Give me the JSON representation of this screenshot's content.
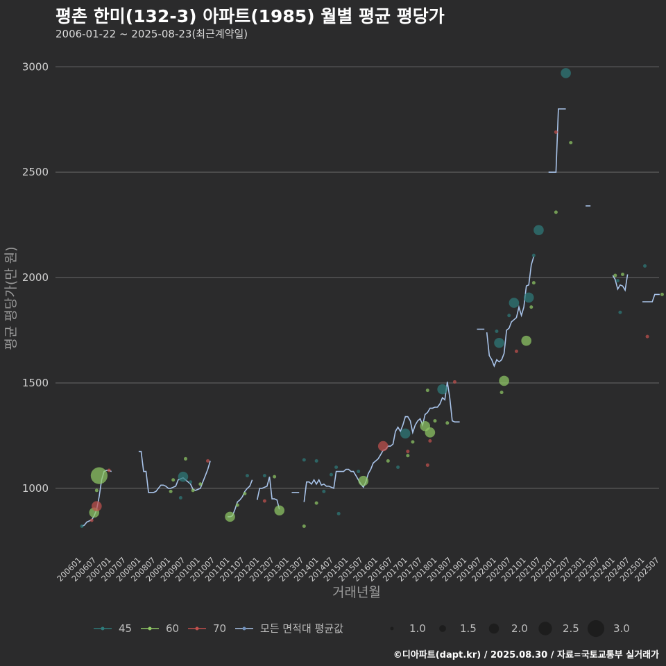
{
  "title": "평촌 한미(132-3) 아파트(1985) 월별 평균 평당가",
  "subtitle": "2006-01-22 ~ 2025-08-23(최근계약일)",
  "caption": "©디아파트(dapt.kr) / 2025.08.30 / 자료=국토교통부 실거래가",
  "colors": {
    "s45": "#2e7a7a",
    "s60": "#8fc765",
    "s70": "#c0504d",
    "avg": "#a9c4ea",
    "bg": "#2b2b2c",
    "grid": "#6a6a6a"
  },
  "chart_data": {
    "type": "scatter",
    "title": "평촌 한미(132-3) 아파트(1985) 월별 평균 평당가",
    "xlabel": "거래년월",
    "ylabel": "평균 평당가(만 원)",
    "ylim": [
      700,
      3070
    ],
    "yticks": [
      1000,
      1500,
      2000,
      2500,
      3000
    ],
    "xrange": [
      "2006-01",
      "2025-09"
    ],
    "xticks": [
      "200601",
      "200607",
      "200701",
      "200707",
      "200801",
      "200807",
      "200901",
      "200907",
      "201001",
      "201007",
      "201101",
      "201107",
      "201201",
      "201207",
      "201301",
      "201307",
      "201401",
      "201407",
      "201501",
      "201507",
      "201601",
      "201607",
      "201701",
      "201707",
      "201801",
      "201807",
      "201901",
      "201907",
      "202001",
      "202007",
      "202101",
      "202107",
      "202201",
      "202207",
      "202301",
      "202307",
      "202401",
      "202407",
      "202501",
      "202507"
    ],
    "legend_color": [
      {
        "key": "s45",
        "label": "45"
      },
      {
        "key": "s60",
        "label": "60"
      },
      {
        "key": "s70",
        "label": "70"
      },
      {
        "key": "avg",
        "label": "모든 면적대 평균값"
      }
    ],
    "legend_size": [
      {
        "size": 1.0,
        "label": "1.0"
      },
      {
        "size": 1.5,
        "label": "1.5"
      },
      {
        "size": 2.0,
        "label": "2.0"
      },
      {
        "size": 2.5,
        "label": "2.5"
      },
      {
        "size": 3.0,
        "label": "3.0"
      }
    ],
    "points": [
      {
        "d": "2006-01",
        "v": 820,
        "s": "s45",
        "n": 1
      },
      {
        "d": "2006-05",
        "v": 848,
        "s": "s70",
        "n": 1
      },
      {
        "d": "2006-06",
        "v": 885,
        "s": "s60",
        "n": 2
      },
      {
        "d": "2006-07",
        "v": 915,
        "s": "s70",
        "n": 2
      },
      {
        "d": "2006-07",
        "v": 990,
        "s": "s60",
        "n": 1
      },
      {
        "d": "2006-08",
        "v": 1060,
        "s": "s60",
        "n": 3
      },
      {
        "d": "2006-12",
        "v": 1085,
        "s": "s70",
        "n": 1
      },
      {
        "d": "2009-01",
        "v": 985,
        "s": "s60",
        "n": 1
      },
      {
        "d": "2009-02",
        "v": 1040,
        "s": "s60",
        "n": 1
      },
      {
        "d": "2009-05",
        "v": 955,
        "s": "s45",
        "n": 1
      },
      {
        "d": "2009-06",
        "v": 1055,
        "s": "s45",
        "n": 2
      },
      {
        "d": "2009-07",
        "v": 1140,
        "s": "s60",
        "n": 1
      },
      {
        "d": "2009-09",
        "v": 1030,
        "s": "s45",
        "n": 1
      },
      {
        "d": "2009-10",
        "v": 990,
        "s": "s60",
        "n": 1
      },
      {
        "d": "2010-01",
        "v": 1020,
        "s": "s60",
        "n": 1
      },
      {
        "d": "2010-04",
        "v": 1130,
        "s": "s70",
        "n": 1
      },
      {
        "d": "2011-01",
        "v": 865,
        "s": "s60",
        "n": 2
      },
      {
        "d": "2011-04",
        "v": 920,
        "s": "s60",
        "n": 1
      },
      {
        "d": "2011-07",
        "v": 975,
        "s": "s60",
        "n": 1
      },
      {
        "d": "2011-08",
        "v": 1060,
        "s": "s45",
        "n": 1
      },
      {
        "d": "2012-03",
        "v": 940,
        "s": "s70",
        "n": 1
      },
      {
        "d": "2012-03",
        "v": 1060,
        "s": "s45",
        "n": 1
      },
      {
        "d": "2012-07",
        "v": 1055,
        "s": "s60",
        "n": 1
      },
      {
        "d": "2012-09",
        "v": 895,
        "s": "s60",
        "n": 2
      },
      {
        "d": "2013-07",
        "v": 820,
        "s": "s60",
        "n": 1
      },
      {
        "d": "2013-07",
        "v": 1135,
        "s": "s45",
        "n": 1
      },
      {
        "d": "2013-12",
        "v": 930,
        "s": "s60",
        "n": 1
      },
      {
        "d": "2013-12",
        "v": 1130,
        "s": "s45",
        "n": 1
      },
      {
        "d": "2014-03",
        "v": 985,
        "s": "s45",
        "n": 1
      },
      {
        "d": "2014-06",
        "v": 1065,
        "s": "s45",
        "n": 1
      },
      {
        "d": "2014-08",
        "v": 1100,
        "s": "s45",
        "n": 1
      },
      {
        "d": "2014-09",
        "v": 880,
        "s": "s45",
        "n": 1
      },
      {
        "d": "2015-07",
        "v": 1035,
        "s": "s60",
        "n": 2
      },
      {
        "d": "2015-05",
        "v": 1080,
        "s": "s45",
        "n": 1
      },
      {
        "d": "2016-03",
        "v": 1200,
        "s": "s70",
        "n": 2
      },
      {
        "d": "2016-05",
        "v": 1130,
        "s": "s60",
        "n": 1
      },
      {
        "d": "2016-09",
        "v": 1100,
        "s": "s45",
        "n": 1
      },
      {
        "d": "2016-12",
        "v": 1260,
        "s": "s45",
        "n": 2
      },
      {
        "d": "2017-01",
        "v": 1155,
        "s": "s60",
        "n": 1
      },
      {
        "d": "2017-01",
        "v": 1175,
        "s": "s70",
        "n": 1
      },
      {
        "d": "2017-03",
        "v": 1220,
        "s": "s60",
        "n": 1
      },
      {
        "d": "2017-08",
        "v": 1295,
        "s": "s60",
        "n": 2
      },
      {
        "d": "2017-10",
        "v": 1265,
        "s": "s60",
        "n": 2
      },
      {
        "d": "2017-10",
        "v": 1225,
        "s": "s70",
        "n": 1
      },
      {
        "d": "2017-09",
        "v": 1110,
        "s": "s70",
        "n": 1
      },
      {
        "d": "2017-09",
        "v": 1465,
        "s": "s60",
        "n": 1
      },
      {
        "d": "2017-12",
        "v": 1320,
        "s": "s60",
        "n": 1
      },
      {
        "d": "2018-03",
        "v": 1470,
        "s": "s45",
        "n": 2
      },
      {
        "d": "2018-05",
        "v": 1310,
        "s": "s60",
        "n": 1
      },
      {
        "d": "2018-08",
        "v": 1505,
        "s": "s70",
        "n": 1
      },
      {
        "d": "2020-01",
        "v": 1745,
        "s": "s45",
        "n": 1
      },
      {
        "d": "2020-02",
        "v": 1690,
        "s": "s45",
        "n": 2
      },
      {
        "d": "2020-03",
        "v": 1455,
        "s": "s60",
        "n": 1
      },
      {
        "d": "2020-04",
        "v": 1510,
        "s": "s60",
        "n": 2
      },
      {
        "d": "2020-06",
        "v": 1820,
        "s": "s45",
        "n": 1
      },
      {
        "d": "2020-08",
        "v": 1880,
        "s": "s45",
        "n": 2
      },
      {
        "d": "2020-09",
        "v": 1650,
        "s": "s70",
        "n": 1
      },
      {
        "d": "2021-01",
        "v": 1700,
        "s": "s60",
        "n": 2
      },
      {
        "d": "2021-02",
        "v": 1905,
        "s": "s45",
        "n": 2
      },
      {
        "d": "2021-03",
        "v": 1860,
        "s": "s60",
        "n": 1
      },
      {
        "d": "2021-04",
        "v": 2105,
        "s": "s45",
        "n": 1
      },
      {
        "d": "2021-04",
        "v": 1975,
        "s": "s60",
        "n": 1
      },
      {
        "d": "2021-06",
        "v": 2225,
        "s": "s45",
        "n": 2
      },
      {
        "d": "2022-01",
        "v": 2690,
        "s": "s70",
        "n": 1
      },
      {
        "d": "2022-01",
        "v": 2310,
        "s": "s60",
        "n": 1
      },
      {
        "d": "2022-05",
        "v": 2970,
        "s": "s45",
        "n": 2
      },
      {
        "d": "2022-07",
        "v": 2640,
        "s": "s60",
        "n": 1
      },
      {
        "d": "2024-01",
        "v": 2010,
        "s": "s60",
        "n": 1
      },
      {
        "d": "2024-02",
        "v": 1985,
        "s": "s45",
        "n": 1
      },
      {
        "d": "2024-03",
        "v": 1835,
        "s": "s45",
        "n": 1
      },
      {
        "d": "2024-04",
        "v": 2015,
        "s": "s60",
        "n": 1
      },
      {
        "d": "2025-01",
        "v": 2055,
        "s": "s45",
        "n": 1
      },
      {
        "d": "2025-02",
        "v": 1720,
        "s": "s70",
        "n": 1
      },
      {
        "d": "2025-08",
        "v": 1920,
        "s": "s60",
        "n": 1
      }
    ],
    "avg_line": [
      [
        [
          "2006-01",
          820
        ],
        [
          "2006-02",
          825
        ],
        [
          "2006-03",
          840
        ],
        [
          "2006-04",
          845
        ],
        [
          "2006-05",
          850
        ],
        [
          "2006-06",
          870
        ],
        [
          "2006-07",
          900
        ],
        [
          "2006-08",
          960
        ],
        [
          "2006-09",
          1040
        ],
        [
          "2006-10",
          1080
        ],
        [
          "2006-11",
          1085
        ],
        [
          "2006-12",
          1085
        ],
        [
          "2007-01",
          1080
        ]
      ],
      [
        [
          "2007-12",
          1175
        ],
        [
          "2008-01",
          1175
        ],
        [
          "2008-02",
          1080
        ],
        [
          "2008-03",
          1080
        ],
        [
          "2008-04",
          980
        ],
        [
          "2008-05",
          980
        ],
        [
          "2008-06",
          980
        ],
        [
          "2008-07",
          985
        ],
        [
          "2008-08",
          1000
        ],
        [
          "2008-09",
          1015
        ],
        [
          "2008-10",
          1015
        ],
        [
          "2008-11",
          1010
        ],
        [
          "2008-12",
          1000
        ],
        [
          "2009-01",
          1000
        ],
        [
          "2009-02",
          1005
        ],
        [
          "2009-03",
          1010
        ],
        [
          "2009-04",
          1040
        ],
        [
          "2009-05",
          1045
        ],
        [
          "2009-06",
          1050
        ],
        [
          "2009-07",
          1040
        ],
        [
          "2009-08",
          1030
        ],
        [
          "2009-09",
          1020
        ],
        [
          "2009-10",
          995
        ],
        [
          "2009-11",
          990
        ],
        [
          "2009-12",
          995
        ],
        [
          "2010-01",
          1000
        ],
        [
          "2010-02",
          1030
        ],
        [
          "2010-03",
          1060
        ],
        [
          "2010-04",
          1090
        ],
        [
          "2010-05",
          1130
        ]
      ],
      [
        [
          "2010-12",
          865
        ],
        [
          "2011-01",
          865
        ],
        [
          "2011-02",
          870
        ],
        [
          "2011-03",
          900
        ],
        [
          "2011-04",
          935
        ],
        [
          "2011-05",
          945
        ],
        [
          "2011-06",
          960
        ],
        [
          "2011-07",
          985
        ],
        [
          "2011-08",
          1000
        ],
        [
          "2011-09",
          1010
        ],
        [
          "2011-10",
          1040
        ]
      ],
      [
        [
          "2011-12",
          945
        ],
        [
          "2012-01",
          1000
        ],
        [
          "2012-02",
          1000
        ],
        [
          "2012-03",
          1005
        ],
        [
          "2012-04",
          1010
        ],
        [
          "2012-05",
          1055
        ],
        [
          "2012-06",
          950
        ],
        [
          "2012-07",
          950
        ],
        [
          "2012-08",
          945
        ],
        [
          "2012-09",
          900
        ]
      ],
      [
        [
          "2013-02",
          980
        ],
        [
          "2013-03",
          980
        ],
        [
          "2013-04",
          980
        ],
        [
          "2013-05",
          980
        ]
      ],
      [
        [
          "2013-07",
          935
        ],
        [
          "2013-08",
          1030
        ],
        [
          "2013-09",
          1030
        ],
        [
          "2013-10",
          1020
        ],
        [
          "2013-11",
          1040
        ],
        [
          "2013-12",
          1020
        ],
        [
          "2014-01",
          1040
        ],
        [
          "2014-02",
          1015
        ],
        [
          "2014-03",
          1020
        ],
        [
          "2014-04",
          1010
        ],
        [
          "2014-05",
          1010
        ],
        [
          "2014-06",
          1005
        ],
        [
          "2014-07",
          1000
        ],
        [
          "2014-08",
          1080
        ],
        [
          "2014-09",
          1080
        ],
        [
          "2014-10",
          1080
        ],
        [
          "2014-11",
          1080
        ],
        [
          "2014-12",
          1090
        ],
        [
          "2015-01",
          1090
        ],
        [
          "2015-02",
          1080
        ],
        [
          "2015-03",
          1080
        ],
        [
          "2015-04",
          1060
        ],
        [
          "2015-05",
          1040
        ],
        [
          "2015-06",
          1020
        ],
        [
          "2015-07",
          1005
        ],
        [
          "2015-08",
          1030
        ],
        [
          "2015-09",
          1070
        ],
        [
          "2015-10",
          1090
        ],
        [
          "2015-11",
          1120
        ],
        [
          "2015-12",
          1130
        ],
        [
          "2016-01",
          1140
        ],
        [
          "2016-02",
          1160
        ],
        [
          "2016-03",
          1180
        ],
        [
          "2016-04",
          1185
        ],
        [
          "2016-05",
          1200
        ],
        [
          "2016-06",
          1200
        ],
        [
          "2016-07",
          1210
        ],
        [
          "2016-08",
          1270
        ],
        [
          "2016-09",
          1290
        ],
        [
          "2016-10",
          1270
        ],
        [
          "2016-11",
          1300
        ],
        [
          "2016-12",
          1340
        ],
        [
          "2017-01",
          1340
        ],
        [
          "2017-02",
          1320
        ],
        [
          "2017-03",
          1265
        ],
        [
          "2017-04",
          1300
        ],
        [
          "2017-05",
          1320
        ],
        [
          "2017-06",
          1330
        ],
        [
          "2017-07",
          1300
        ],
        [
          "2017-08",
          1350
        ],
        [
          "2017-09",
          1360
        ],
        [
          "2017-10",
          1380
        ],
        [
          "2017-11",
          1380
        ],
        [
          "2017-12",
          1385
        ],
        [
          "2018-01",
          1385
        ],
        [
          "2018-02",
          1400
        ],
        [
          "2018-03",
          1430
        ],
        [
          "2018-04",
          1420
        ],
        [
          "2018-05",
          1505
        ],
        [
          "2018-06",
          1430
        ],
        [
          "2018-07",
          1320
        ],
        [
          "2018-08",
          1315
        ],
        [
          "2018-09",
          1315
        ],
        [
          "2018-10",
          1315
        ]
      ],
      [
        [
          "2019-05",
          1755
        ],
        [
          "2019-06",
          1755
        ],
        [
          "2019-07",
          1755
        ],
        [
          "2019-08",
          1755
        ]
      ],
      [
        [
          "2019-09",
          1740
        ],
        [
          "2019-10",
          1630
        ],
        [
          "2019-11",
          1610
        ],
        [
          "2019-12",
          1580
        ],
        [
          "2020-01",
          1610
        ],
        [
          "2020-02",
          1600
        ],
        [
          "2020-03",
          1610
        ],
        [
          "2020-04",
          1640
        ],
        [
          "2020-05",
          1750
        ],
        [
          "2020-06",
          1760
        ],
        [
          "2020-07",
          1790
        ],
        [
          "2020-08",
          1800
        ],
        [
          "2020-09",
          1810
        ],
        [
          "2020-10",
          1860
        ],
        [
          "2020-11",
          1820
        ],
        [
          "2020-12",
          1860
        ],
        [
          "2021-01",
          1960
        ],
        [
          "2021-02",
          1965
        ],
        [
          "2021-03",
          2060
        ],
        [
          "2021-04",
          2100
        ]
      ],
      [
        [
          "2021-10",
          2500
        ],
        [
          "2021-11",
          2500
        ],
        [
          "2021-12",
          2500
        ],
        [
          "2022-01",
          2500
        ],
        [
          "2022-02",
          2800
        ],
        [
          "2022-03",
          2800
        ],
        [
          "2022-04",
          2800
        ],
        [
          "2022-05",
          2800
        ]
      ],
      [
        [
          "2023-01",
          2340
        ],
        [
          "2023-02",
          2340
        ],
        [
          "2023-03",
          2340
        ]
      ],
      [
        [
          "2023-12",
          2010
        ],
        [
          "2024-01",
          1990
        ],
        [
          "2024-02",
          1945
        ],
        [
          "2024-03",
          1965
        ],
        [
          "2024-04",
          1960
        ],
        [
          "2024-05",
          1940
        ],
        [
          "2024-06",
          2015
        ]
      ],
      [
        [
          "2024-12",
          1885
        ],
        [
          "2025-01",
          1885
        ],
        [
          "2025-02",
          1885
        ],
        [
          "2025-03",
          1885
        ],
        [
          "2025-04",
          1885
        ],
        [
          "2025-05",
          1920
        ],
        [
          "2025-06",
          1920
        ],
        [
          "2025-07",
          1920
        ]
      ]
    ]
  }
}
